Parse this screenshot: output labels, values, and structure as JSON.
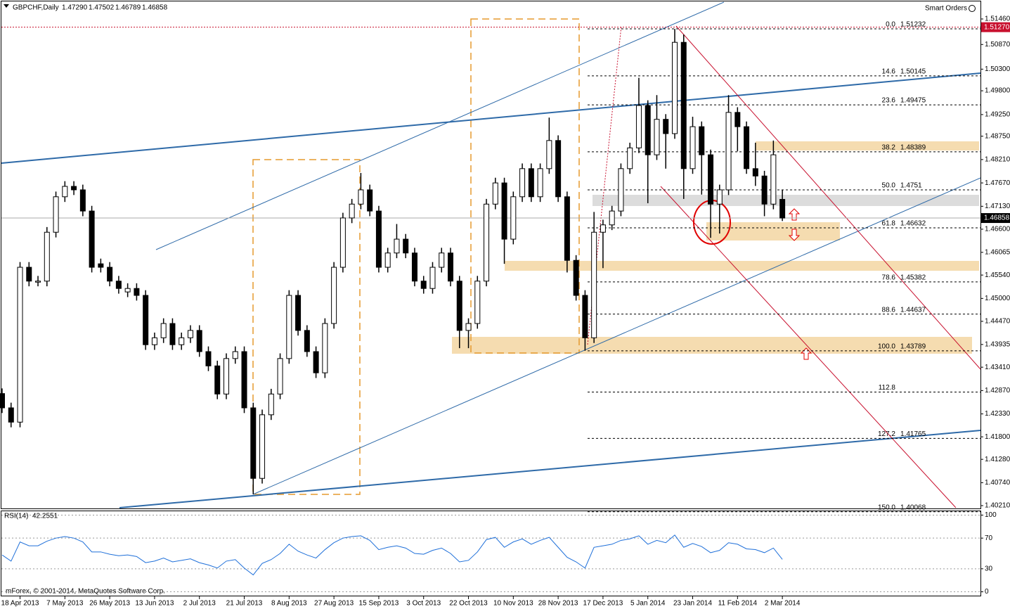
{
  "chart_data": [
    {
      "type": "candlestick",
      "title": "GBPCHF,Daily",
      "ohlc": [
        {
          "value": 1.4729,
          "label": "1.47290"
        },
        1.47502,
        1.46789,
        1.46858
      ],
      "level_marker": {
        "value": 1.5127,
        "label": "1.51270"
      },
      "categories": [
        null,
        null,
        "18 Apr 2013",
        null,
        null,
        null,
        null,
        "7 May 2013",
        null,
        null,
        null,
        null,
        "26 May 2013",
        null,
        null,
        null,
        null,
        "13 Jun 2013",
        null,
        null,
        null,
        null,
        "2 Jul 2013",
        null,
        null,
        null,
        null,
        "21 Jul 2013",
        null,
        null,
        null,
        null,
        "8 Aug 2013",
        null,
        null,
        null,
        null,
        "27 Aug 2013",
        null,
        null,
        null,
        null,
        "15 Sep 2013",
        null,
        null,
        null,
        null,
        "3 Oct 2013",
        null,
        null,
        null,
        null,
        "22 Oct 2013",
        null,
        null,
        null,
        null,
        "10 Nov 2013",
        null,
        null,
        null,
        null,
        "28 Nov 2013",
        null,
        null,
        null,
        null,
        "17 Dec 2013",
        null,
        null,
        null,
        null,
        "5 Jan 2014",
        null,
        null,
        null,
        null,
        "23 Jan 2014",
        null,
        null,
        null,
        null,
        "11 Feb 2014",
        null,
        null,
        null,
        null,
        "2 Mar 2014"
      ],
      "open": [
        1.428,
        1.4247,
        1.4214,
        1.4572,
        1.454,
        1.454,
        1.4653,
        1.4735,
        1.4759,
        1.4751,
        1.4702,
        1.458,
        1.4572,
        1.454,
        1.4515,
        1.4523,
        1.4507,
        1.4393,
        1.4409,
        1.4442,
        1.4393,
        1.4409,
        1.4426,
        1.4377,
        1.4344,
        1.4279,
        1.4361,
        1.4377,
        1.4247,
        1.4084,
        1.4231,
        1.4279,
        1.4361,
        1.4507,
        1.4426,
        1.4377,
        1.4328,
        1.4442,
        1.4572,
        1.4686,
        1.4718,
        1.4751,
        1.4702,
        1.4572,
        1.4605,
        1.4637,
        1.4605,
        1.454,
        1.4523,
        1.4572,
        1.4605,
        1.454,
        1.4426,
        1.4442,
        1.454,
        1.4718,
        1.4767,
        1.4637,
        1.4735,
        1.48,
        1.4735,
        1.48,
        1.4865,
        1.4735,
        1.4588,
        1.4507,
        1.4409,
        1.4653,
        1.467,
        1.4702,
        1.48,
        1.4848,
        1.4946,
        1.4832,
        1.4914,
        1.4881,
        1.5092,
        1.48,
        1.4897,
        1.4832,
        1.4718,
        1.4751,
        1.493,
        1.4897,
        1.48,
        1.4783,
        1.4718,
        1.4729
      ],
      "high": [
        1.4292,
        1.4259,
        1.4584,
        1.4584,
        1.4552,
        1.4665,
        1.4747,
        1.4771,
        1.4771,
        1.4763,
        1.4714,
        1.4592,
        1.4584,
        1.4552,
        1.4535,
        1.4535,
        1.4519,
        1.4421,
        1.4454,
        1.4454,
        1.4421,
        1.4438,
        1.4438,
        1.4389,
        1.4356,
        1.4373,
        1.4389,
        1.4389,
        1.4259,
        1.4243,
        1.4291,
        1.4373,
        1.4519,
        1.4519,
        1.4438,
        1.4389,
        1.4454,
        1.4584,
        1.4698,
        1.473,
        1.479,
        1.4763,
        1.4714,
        1.4617,
        1.4672,
        1.4649,
        1.4617,
        1.4552,
        1.4584,
        1.4617,
        1.4617,
        1.4552,
        1.4454,
        1.4552,
        1.473,
        1.4779,
        1.4779,
        1.4747,
        1.4812,
        1.4812,
        1.4812,
        1.4918,
        1.4877,
        1.4747,
        1.46,
        1.4519,
        1.47,
        1.4682,
        1.4714,
        1.4812,
        1.486,
        1.501,
        1.4958,
        1.497,
        1.4926,
        1.5123,
        1.511,
        1.492,
        1.4909,
        1.4844,
        1.4763,
        1.497,
        1.4942,
        1.4909,
        1.486,
        1.4795,
        1.4865,
        1.47502
      ],
      "low": [
        1.4235,
        1.4202,
        1.4202,
        1.4528,
        1.4528,
        1.4528,
        1.4641,
        1.4723,
        1.4739,
        1.469,
        1.456,
        1.456,
        1.4528,
        1.4511,
        1.4503,
        1.4495,
        1.4381,
        1.4381,
        1.4397,
        1.4381,
        1.4381,
        1.4397,
        1.4365,
        1.4332,
        1.4267,
        1.4267,
        1.4349,
        1.4235,
        1.4047,
        1.4072,
        1.4219,
        1.4267,
        1.4349,
        1.4414,
        1.4365,
        1.4316,
        1.4316,
        1.443,
        1.456,
        1.4674,
        1.4706,
        1.469,
        1.456,
        1.456,
        1.4593,
        1.4593,
        1.4528,
        1.4511,
        1.4511,
        1.456,
        1.4528,
        1.4385,
        1.4385,
        1.443,
        1.4528,
        1.4706,
        1.458,
        1.4625,
        1.4723,
        1.4723,
        1.4723,
        1.4788,
        1.4723,
        1.456,
        1.4495,
        1.4379,
        1.4397,
        1.457,
        1.4658,
        1.469,
        1.4788,
        1.4836,
        1.472,
        1.482,
        1.48,
        1.4869,
        1.473,
        1.4788,
        1.474,
        1.464,
        1.465,
        1.4739,
        1.484,
        1.4788,
        1.476,
        1.469,
        1.4706,
        1.46789
      ],
      "close": [
        1.4247,
        1.4214,
        1.4572,
        1.454,
        1.454,
        1.4653,
        1.4735,
        1.4759,
        1.4751,
        1.4702,
        1.4572,
        1.4572,
        1.454,
        1.4523,
        1.4523,
        1.4507,
        1.4393,
        1.4409,
        1.4442,
        1.4393,
        1.4409,
        1.4426,
        1.4377,
        1.4344,
        1.4279,
        1.4361,
        1.4377,
        1.4247,
        1.4084,
        1.4231,
        1.4279,
        1.4361,
        1.4507,
        1.4426,
        1.4377,
        1.4328,
        1.4442,
        1.4572,
        1.4686,
        1.4718,
        1.4751,
        1.4702,
        1.4572,
        1.4605,
        1.4637,
        1.4605,
        1.454,
        1.4523,
        1.4572,
        1.4605,
        1.454,
        1.4426,
        1.4442,
        1.454,
        1.4718,
        1.4767,
        1.4637,
        1.4735,
        1.48,
        1.4735,
        1.48,
        1.4865,
        1.4735,
        1.4588,
        1.4507,
        1.4409,
        1.4653,
        1.467,
        1.4702,
        1.48,
        1.4848,
        1.4946,
        1.4832,
        1.4914,
        1.4881,
        1.5092,
        1.48,
        1.4897,
        1.4832,
        1.4718,
        1.4751,
        1.493,
        1.4897,
        1.48,
        1.4783,
        1.4718,
        1.4832,
        1.46858
      ],
      "color": "#000000",
      "ylim": [
        1.40161,
        1.51606
      ],
      "yticks": [
        {
          "value": 1.5146,
          "label": "1.51460"
        },
        {
          "value": 1.5087,
          "label": "1.50870"
        },
        {
          "value": 1.503,
          "label": "1.50300"
        },
        {
          "value": 1.498,
          "label": "1.49800"
        },
        {
          "value": 1.4925,
          "label": "1.49250"
        },
        {
          "value": 1.4875,
          "label": "1.48750"
        },
        {
          "value": 1.4821,
          "label": "1.48210"
        },
        {
          "value": 1.4767,
          "label": "1.47670"
        },
        {
          "value": 1.4713,
          "label": "1.47130"
        },
        {
          "value": 1.466,
          "label": "1.46600"
        },
        1.46065,
        {
          "value": 1.4554,
          "label": "1.45540"
        },
        {
          "value": 1.45,
          "label": "1.45000"
        },
        {
          "value": 1.4447,
          "label": "1.44470"
        },
        1.43935,
        {
          "value": 1.4341,
          "label": "1.43410"
        },
        {
          "value": 1.4287,
          "label": "1.42870"
        },
        {
          "value": 1.4233,
          "label": "1.42330"
        },
        {
          "value": 1.418,
          "label": "1.41800"
        },
        {
          "value": 1.4128,
          "label": "1.41280"
        },
        {
          "value": 1.4074,
          "label": "1.40740"
        },
        {
          "value": 1.4021,
          "label": "1.40210"
        }
      ],
      "fib_levels": [
        {
          "level": "0.0",
          "price": 1.51232
        },
        {
          "level": "14.6",
          "price": 1.50145
        },
        {
          "level": "23.6",
          "price": 1.49475
        },
        {
          "level": "38.2",
          "price": 1.48389
        },
        {
          "level": "50.0",
          "price": 1.4751
        },
        {
          "level": "61.8",
          "price": 1.46632
        },
        {
          "level": "78.6",
          "price": 1.45382
        },
        {
          "level": "88.6",
          "price": 1.44637
        },
        {
          "level": "100.0",
          "price": 1.43789
        },
        {
          "level": "112.8",
          "price": {
            "value": 1.42836
          }
        },
        {
          "level": "127.2",
          "price": 1.41765
        },
        {
          "level": "150.0",
          "price": 1.40068
        }
      ],
      "grid": false
    },
    {
      "type": "line",
      "label": "RSI(14)",
      "color": "#1e6fd9",
      "values": [
        48,
        40,
        65,
        60,
        60,
        66,
        70,
        72,
        70,
        65,
        52,
        52,
        49,
        47,
        48,
        46,
        38,
        40,
        44,
        39,
        41,
        43,
        38,
        35,
        31,
        40,
        42,
        31,
        22,
        37,
        42,
        50,
        62,
        53,
        48,
        44,
        55,
        64,
        70,
        72,
        73,
        67,
        55,
        58,
        60,
        57,
        50,
        49,
        54,
        57,
        50,
        39,
        41,
        52,
        68,
        71,
        58,
        65,
        69,
        62,
        67,
        71,
        58,
        45,
        39,
        31,
        58,
        60,
        62,
        67,
        69,
        73,
        62,
        67,
        64,
        74,
        58,
        63,
        59,
        51,
        54,
        64,
        62,
        56,
        55,
        51,
        57,
        42.2551
      ],
      "ylim": [
        -5,
        105
      ],
      "yticks": [
        100,
        70,
        30,
        0
      ]
    }
  ],
  "toolbar": {
    "smart_orders": "Smart Orders"
  },
  "footer": {
    "copyright": "mForex, © 2001-2014, MetaQuotes Software Corp."
  }
}
